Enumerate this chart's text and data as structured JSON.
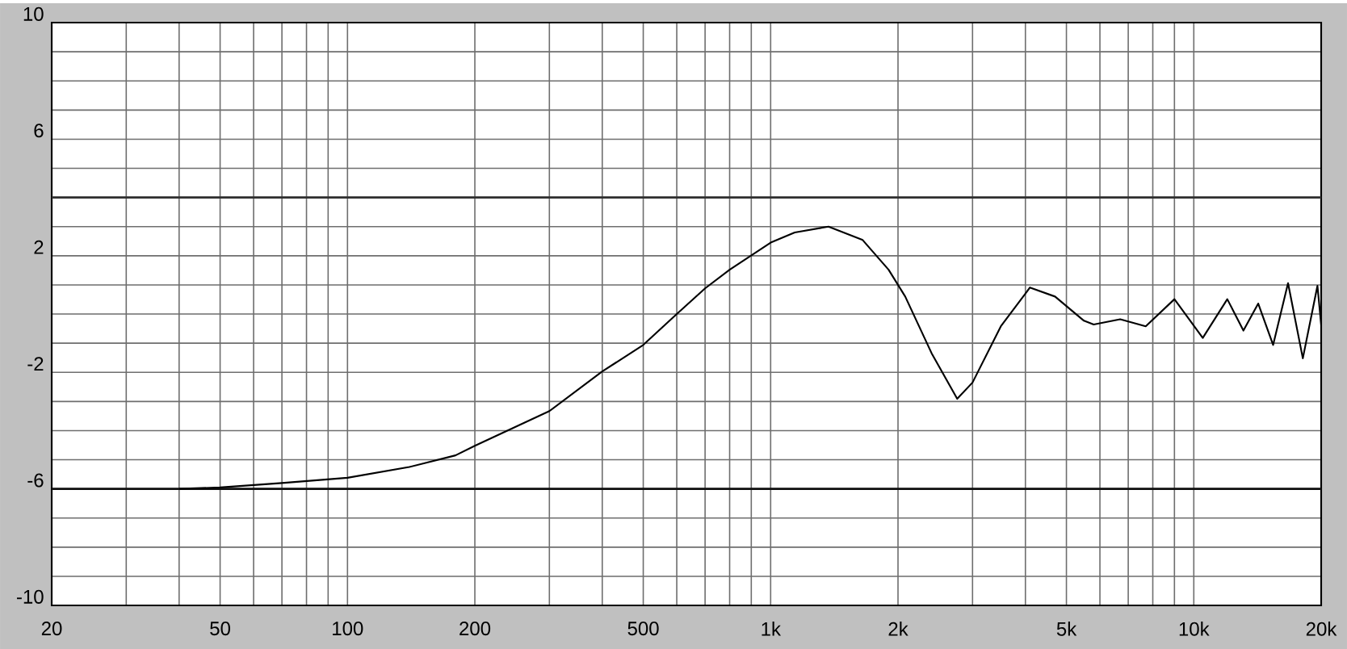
{
  "chart_data": {
    "type": "line",
    "log": "x",
    "grid": true,
    "xlim": [
      20,
      20000
    ],
    "ylim": [
      -10,
      10
    ],
    "xticks": [
      20,
      {
        "value": 30,
        "label": null
      },
      {
        "value": 40,
        "label": null
      },
      50,
      {
        "value": 60,
        "label": null
      },
      {
        "value": 70,
        "label": null
      },
      {
        "value": 80,
        "label": null
      },
      {
        "value": 90,
        "label": null
      },
      100,
      200,
      {
        "value": 300,
        "label": null
      },
      {
        "value": 400,
        "label": null
      },
      500,
      {
        "value": 600,
        "label": null
      },
      {
        "value": 700,
        "label": null
      },
      {
        "value": 800,
        "label": null
      },
      {
        "value": 900,
        "label": null
      },
      {
        "value": 1000,
        "label": "1k"
      },
      {
        "value": 2000,
        "label": "2k"
      },
      {
        "value": 3000,
        "label": null
      },
      {
        "value": 4000,
        "label": null
      },
      {
        "value": 5000,
        "label": "5k"
      },
      {
        "value": 6000,
        "label": null
      },
      {
        "value": 7000,
        "label": null
      },
      {
        "value": 8000,
        "label": null
      },
      {
        "value": 9000,
        "label": null
      },
      {
        "value": 10000,
        "label": "10k"
      },
      {
        "value": 20000,
        "label": "20k"
      }
    ],
    "yticks": [
      -10,
      {
        "value": -9,
        "label": null
      },
      {
        "value": -8,
        "label": null
      },
      {
        "value": -7,
        "label": null
      },
      -6,
      {
        "value": -5,
        "label": null
      },
      {
        "value": -4,
        "label": null
      },
      {
        "value": -3,
        "label": null
      },
      -2,
      {
        "value": -1,
        "label": null
      },
      {
        "value": 0,
        "label": null
      },
      {
        "value": 1,
        "label": null
      },
      2,
      {
        "value": 3,
        "label": null
      },
      {
        "value": 4,
        "label": null
      },
      {
        "value": 5,
        "label": null
      },
      6,
      {
        "value": 7,
        "label": null
      },
      {
        "value": 8,
        "label": null
      },
      {
        "value": 9,
        "label": null
      },
      10
    ],
    "ref_lines": [
      {
        "axis": "y",
        "value": 4,
        "color": "#303030"
      },
      {
        "axis": "y",
        "value": -6,
        "color": "#101010"
      }
    ],
    "series": [
      {
        "color": "#000000",
        "x": [
          40,
          50,
          70,
          100,
          140,
          180,
          200,
          300,
          400,
          500,
          600,
          700,
          800,
          1000,
          1140,
          1370,
          1650,
          1900,
          2080,
          2400,
          2760,
          3000,
          3500,
          4100,
          4700,
          5500,
          5800,
          6700,
          7700,
          9000,
          10500,
          12000,
          13100,
          14200,
          15400,
          16700,
          18100,
          19600,
          20000
        ],
        "values": [
          -6.0,
          -5.95,
          -5.8,
          -5.62,
          -5.25,
          -4.85,
          -4.52,
          -3.33,
          -1.97,
          -1.06,
          0.0,
          0.88,
          1.52,
          2.45,
          2.8,
          3.0,
          2.54,
          1.52,
          0.6,
          -1.34,
          -2.91,
          -2.35,
          -0.42,
          0.91,
          0.6,
          -0.23,
          -0.36,
          -0.18,
          -0.42,
          0.51,
          -0.82,
          0.51,
          -0.57,
          0.36,
          -1.06,
          1.06,
          -1.52,
          0.97,
          -0.38
        ]
      }
    ]
  }
}
